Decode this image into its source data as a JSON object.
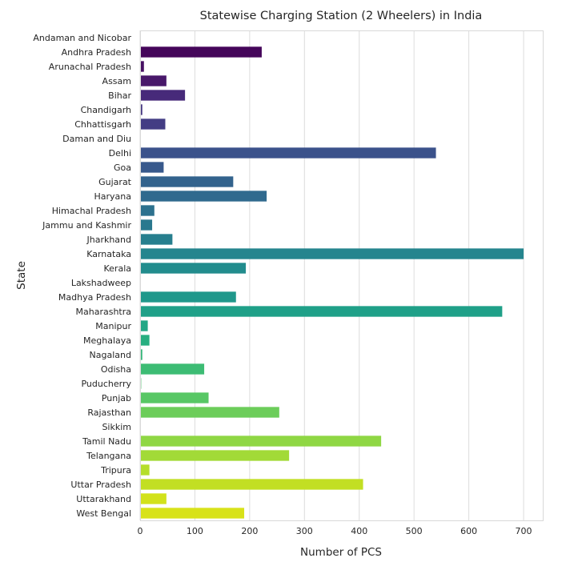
{
  "chart_data": {
    "type": "bar",
    "orientation": "horizontal",
    "title": "Statewise Charging Station (2 Wheelers) in India",
    "xlabel": "Number of PCS",
    "ylabel": "State",
    "xlim": [
      0,
      735
    ],
    "xticks": [
      "0",
      "100",
      "200",
      "300",
      "400",
      "500",
      "600",
      "700"
    ],
    "grid": "vertical",
    "palette": "viridis",
    "categories": [
      "Andaman and Nicobar",
      "Andhra Pradesh",
      "Arunachal Pradesh",
      "Assam",
      "Bihar",
      "Chandigarh",
      "Chhattisgarh",
      "Daman and Diu",
      "Delhi",
      "Goa",
      "Gujarat",
      "Haryana",
      "Himachal Pradesh",
      "Jammu and Kashmir",
      "Jharkhand",
      "Karnataka",
      "Kerala",
      "Lakshadweep",
      "Madhya Pradesh",
      "Maharashtra",
      "Manipur",
      "Meghalaya",
      "Nagaland",
      "Odisha",
      "Puducherry",
      "Punjab",
      "Rajasthan",
      "Sikkim",
      "Tamil Nadu",
      "Telangana",
      "Tripura",
      "Uttar Pradesh",
      "Uttarakhand",
      "West Bengal"
    ],
    "values": [
      0,
      222,
      7,
      48,
      82,
      4,
      46,
      0,
      540,
      43,
      170,
      231,
      26,
      22,
      59,
      700,
      193,
      0,
      175,
      661,
      14,
      17,
      4,
      117,
      2,
      125,
      254,
      0,
      440,
      272,
      17,
      407,
      48,
      190
    ],
    "colors": [
      "#440154",
      "#45065a",
      "#471063",
      "#48186a",
      "#472a7a",
      "#453781",
      "#433d84",
      "#3f4788",
      "#3b528b",
      "#38598c",
      "#33638d",
      "#306a8e",
      "#2d718e",
      "#2a788e",
      "#277f8e",
      "#25858e",
      "#228c8d",
      "#20928c",
      "#1f988b",
      "#1fa088",
      "#22a785",
      "#28ae80",
      "#34b679",
      "#3dbc74",
      "#4ac16d",
      "#58c765",
      "#6ccd5a",
      "#7cd250",
      "#8fd744",
      "#a2da37",
      "#b5de2b",
      "#c2df23",
      "#d2e21b",
      "#d8e219"
    ]
  }
}
